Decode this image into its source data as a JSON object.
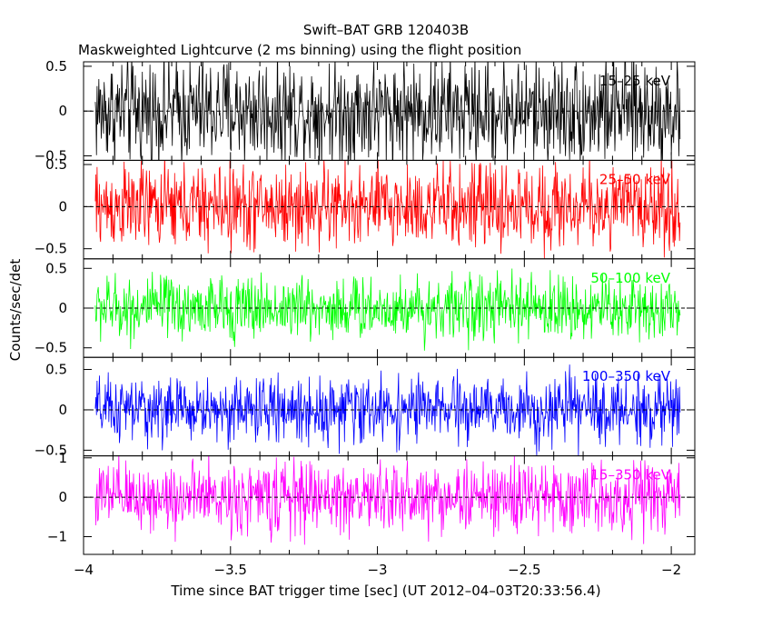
{
  "title": "Swift–BAT GRB 120403B",
  "subtitle": "Maskweighted Lightcurve (2 ms binning) using the flight position",
  "chart_data": {
    "type": "line",
    "xlabel": "Time since BAT trigger time [sec] (UT 2012–04–03T20:33:56.4)",
    "ylabel": "Counts/sec/det",
    "xlim": [
      -4.0,
      -1.92
    ],
    "xticks": [
      -4,
      -3.5,
      -3,
      -2.5,
      -2
    ],
    "xtick_labels": [
      "−4",
      "−3.5",
      "−3",
      "−2.5",
      "−2"
    ],
    "data_x_range": [
      -3.96,
      -1.97
    ],
    "bin_width_s": 0.002,
    "panels": [
      {
        "band": "15–25 keV",
        "color": "#000000",
        "ylim": [
          -0.55,
          0.55
        ],
        "yticks": [
          -0.5,
          0,
          0.5
        ],
        "ytick_labels": [
          "−0.5",
          "0",
          "0.5"
        ],
        "noise_amplitude": 0.3
      },
      {
        "band": "25–50 keV",
        "color": "#ff0000",
        "ylim": [
          -0.62,
          0.55
        ],
        "yticks": [
          -0.5,
          0,
          0.5
        ],
        "ytick_labels": [
          "−0.5",
          "0",
          "0.5"
        ],
        "noise_amplitude": 0.25
      },
      {
        "band": "50–100 keV",
        "color": "#00ff00",
        "ylim": [
          -0.62,
          0.62
        ],
        "yticks": [
          -0.5,
          0,
          0.5
        ],
        "ytick_labels": [
          "−0.5",
          "0",
          "0.5"
        ],
        "noise_amplitude": 0.2
      },
      {
        "band": "100–350 keV",
        "color": "#0000ff",
        "ylim": [
          -0.57,
          0.65
        ],
        "yticks": [
          -0.5,
          0,
          0.5
        ],
        "ytick_labels": [
          "−0.5",
          "0",
          "0.5"
        ],
        "noise_amplitude": 0.2
      },
      {
        "band": "15–350 keV",
        "color": "#ff00ff",
        "ylim": [
          -1.45,
          1.05
        ],
        "yticks": [
          -1,
          0,
          1
        ],
        "ytick_labels": [
          "−1",
          "0",
          "1"
        ],
        "noise_amplitude": 0.45
      }
    ]
  }
}
